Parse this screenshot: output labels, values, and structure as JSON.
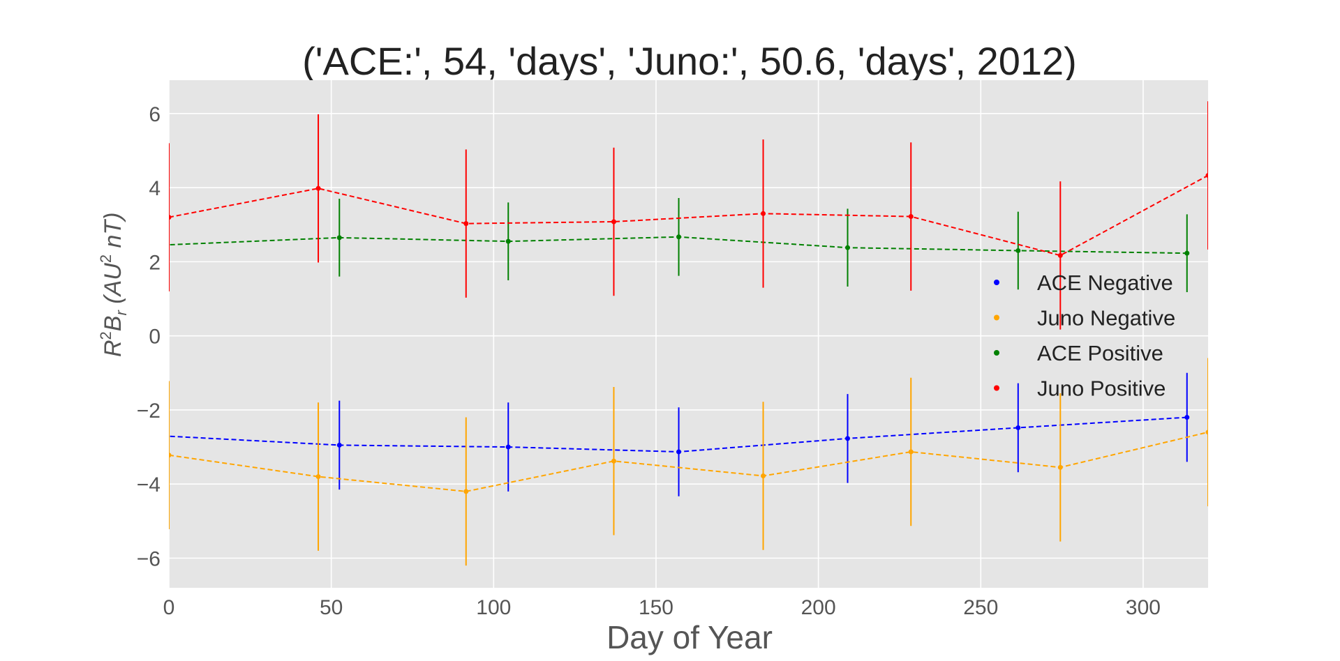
{
  "chart_data": {
    "type": "line",
    "title": "('ACE:', 54, 'days', 'Juno:', 50.6, 'days', 2012)",
    "xlabel": "Day of Year",
    "ylabel": {
      "base": "R",
      "sup1": "2",
      "mid": "B",
      "sub": "r",
      "unit_open": " (AU",
      "sup2": "2",
      "unit_close": " nT)"
    },
    "xlim": [
      0,
      320
    ],
    "ylim": [
      -6.8,
      6.9
    ],
    "xticks": [
      0,
      50,
      100,
      150,
      200,
      250,
      300
    ],
    "yticks": [
      -6,
      -4,
      -2,
      0,
      2,
      4,
      6
    ],
    "ytick_labels": [
      "−6",
      "−4",
      "−2",
      "0",
      "2",
      "4",
      "6"
    ],
    "grid": true,
    "legend_position": "right",
    "series": [
      {
        "name": "ACE Negative",
        "color": "#0000ff",
        "x": [
          -2,
          52.5,
          104.5,
          157,
          209,
          261.5,
          313.5
        ],
        "y": [
          -2.7,
          -2.95,
          -3.0,
          -3.13,
          -2.77,
          -2.48,
          -2.2
        ],
        "err": [
          1.2,
          1.2,
          1.2,
          1.2,
          1.2,
          1.2,
          1.2
        ]
      },
      {
        "name": "Juno Negative",
        "color": "#ffa500",
        "x": [
          0,
          46,
          91.5,
          137,
          183,
          228.5,
          274.5,
          320
        ],
        "y": [
          -3.22,
          -3.8,
          -4.2,
          -3.38,
          -3.78,
          -3.13,
          -3.55,
          -2.6
        ],
        "err": [
          2.0,
          2.0,
          2.0,
          2.0,
          2.0,
          2.0,
          2.0,
          2.0
        ]
      },
      {
        "name": "ACE Positive",
        "color": "#008000",
        "x": [
          -2,
          52.5,
          104.5,
          157,
          209,
          261.5,
          313.5
        ],
        "y": [
          2.45,
          2.65,
          2.55,
          2.67,
          2.38,
          2.3,
          2.23
        ],
        "err": [
          1.05,
          1.05,
          1.05,
          1.05,
          1.05,
          1.05,
          1.05
        ]
      },
      {
        "name": "Juno Positive",
        "color": "#ff0000",
        "x": [
          0,
          46,
          91.5,
          137,
          183,
          228.5,
          274.5,
          320
        ],
        "y": [
          3.2,
          3.98,
          3.03,
          3.08,
          3.3,
          3.22,
          2.17,
          4.33
        ],
        "err": [
          2.0,
          2.0,
          2.0,
          2.0,
          2.0,
          2.0,
          2.0,
          2.0
        ]
      }
    ]
  }
}
